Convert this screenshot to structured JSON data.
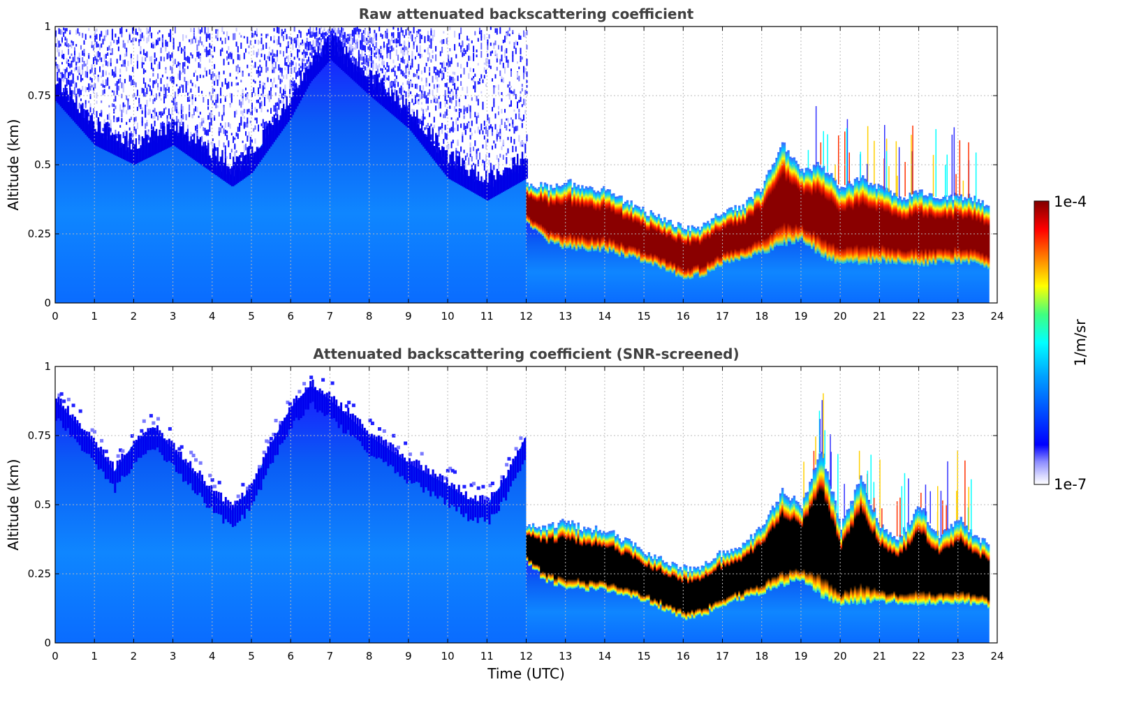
{
  "chart_data": [
    {
      "type": "heatmap",
      "title": "Raw attenuated backscattering coefficient",
      "ylabel": "Altitude (km)",
      "xlabel": "",
      "xlim": [
        0,
        24
      ],
      "ylim": [
        0,
        1
      ],
      "xticks": [
        "0",
        "1",
        "2",
        "3",
        "4",
        "5",
        "6",
        "7",
        "8",
        "9",
        "10",
        "11",
        "12",
        "13",
        "14",
        "15",
        "16",
        "17",
        "18",
        "19",
        "20",
        "21",
        "22",
        "23",
        "24"
      ],
      "yticks": [
        "0",
        "0.25",
        "0.5",
        "0.75",
        "1"
      ],
      "grid": true,
      "data_end_hour": 23.8,
      "layers": {
        "noisy_top_before_12h": {
          "hours": [
            0,
            1,
            2,
            3,
            4,
            4.5,
            5,
            6,
            6.5,
            7,
            8,
            9,
            10,
            11,
            11.5,
            12
          ],
          "boundary_km": [
            0.78,
            0.62,
            0.55,
            0.62,
            0.52,
            0.47,
            0.52,
            0.72,
            0.85,
            0.93,
            0.8,
            0.68,
            0.5,
            0.42,
            0.46,
            0.5
          ]
        },
        "cloud_top_after_12h": {
          "hours": [
            12,
            12.5,
            13,
            13.5,
            14,
            15,
            16,
            16.5,
            17,
            17.5,
            18,
            18.5,
            19,
            19.5,
            20,
            20.5,
            21,
            21.5,
            22,
            22.5,
            23,
            23.5,
            23.8
          ],
          "top_km": [
            0.43,
            0.42,
            0.44,
            0.41,
            0.41,
            0.33,
            0.27,
            0.28,
            0.33,
            0.35,
            0.42,
            0.58,
            0.48,
            0.5,
            0.42,
            0.45,
            0.42,
            0.38,
            0.4,
            0.38,
            0.39,
            0.37,
            0.36
          ]
        },
        "cloud_base_after_12h": {
          "hours": [
            12,
            12.5,
            13,
            14,
            15,
            16,
            16.5,
            17,
            17.5,
            18,
            18.5,
            19,
            19.5,
            20,
            21,
            22,
            23,
            23.8
          ],
          "base_km": [
            0.3,
            0.23,
            0.21,
            0.2,
            0.16,
            0.1,
            0.11,
            0.15,
            0.17,
            0.19,
            0.22,
            0.24,
            0.18,
            0.15,
            0.16,
            0.15,
            0.16,
            0.14
          ]
        }
      }
    },
    {
      "type": "heatmap",
      "title": "Attenuated backscattering coefficient (SNR-screened)",
      "ylabel": "Altitude (km)",
      "xlabel": "Time (UTC)",
      "xlim": [
        0,
        24
      ],
      "ylim": [
        0,
        1
      ],
      "xticks": [
        "0",
        "1",
        "2",
        "3",
        "4",
        "5",
        "6",
        "7",
        "8",
        "9",
        "10",
        "11",
        "12",
        "13",
        "14",
        "15",
        "16",
        "17",
        "18",
        "19",
        "20",
        "21",
        "22",
        "23",
        "24"
      ],
      "yticks": [
        "0",
        "0.25",
        "0.5",
        "0.75",
        "1"
      ],
      "grid": true,
      "data_end_hour": 23.8,
      "layers": {
        "signal_top_before_12h": {
          "hours": [
            0,
            0.5,
            1,
            1.5,
            2,
            2.5,
            3,
            3.5,
            4,
            4.5,
            5,
            5.5,
            6,
            6.5,
            7,
            8,
            9,
            10,
            10.5,
            11,
            11.5,
            12
          ],
          "top_km": [
            0.88,
            0.8,
            0.72,
            0.62,
            0.72,
            0.78,
            0.7,
            0.62,
            0.54,
            0.48,
            0.56,
            0.72,
            0.85,
            0.93,
            0.88,
            0.75,
            0.65,
            0.57,
            0.52,
            0.5,
            0.6,
            0.75
          ]
        },
        "cloud_top_after_12h": {
          "hours": [
            12,
            12.5,
            13,
            13.5,
            14,
            15,
            16,
            16.5,
            17,
            17.5,
            18,
            18.5,
            19,
            19.5,
            20,
            20.5,
            21,
            21.5,
            22,
            22.5,
            23,
            23.5,
            23.8
          ],
          "top_km": [
            0.43,
            0.42,
            0.44,
            0.41,
            0.41,
            0.33,
            0.27,
            0.28,
            0.33,
            0.35,
            0.42,
            0.55,
            0.5,
            0.7,
            0.42,
            0.6,
            0.42,
            0.38,
            0.5,
            0.38,
            0.45,
            0.37,
            0.36
          ]
        },
        "cloud_base_after_12h": {
          "hours": [
            12,
            12.5,
            13,
            14,
            15,
            16,
            16.5,
            17,
            17.5,
            18,
            18.5,
            19,
            19.5,
            20,
            21,
            22,
            23,
            23.8
          ],
          "base_km": [
            0.3,
            0.23,
            0.21,
            0.2,
            0.16,
            0.1,
            0.11,
            0.15,
            0.17,
            0.19,
            0.22,
            0.24,
            0.18,
            0.15,
            0.16,
            0.15,
            0.16,
            0.14
          ]
        }
      }
    }
  ],
  "colorbar": {
    "label": "1/m/sr",
    "max_label": "1e-4",
    "min_label": "1e-7",
    "stops": [
      "#ffffff",
      "#d9d9ff",
      "#8c8cff",
      "#0000ff",
      "#0050ff",
      "#00a0ff",
      "#00ffff",
      "#40ff80",
      "#ffff00",
      "#ff8000",
      "#ff0000",
      "#800000"
    ]
  }
}
